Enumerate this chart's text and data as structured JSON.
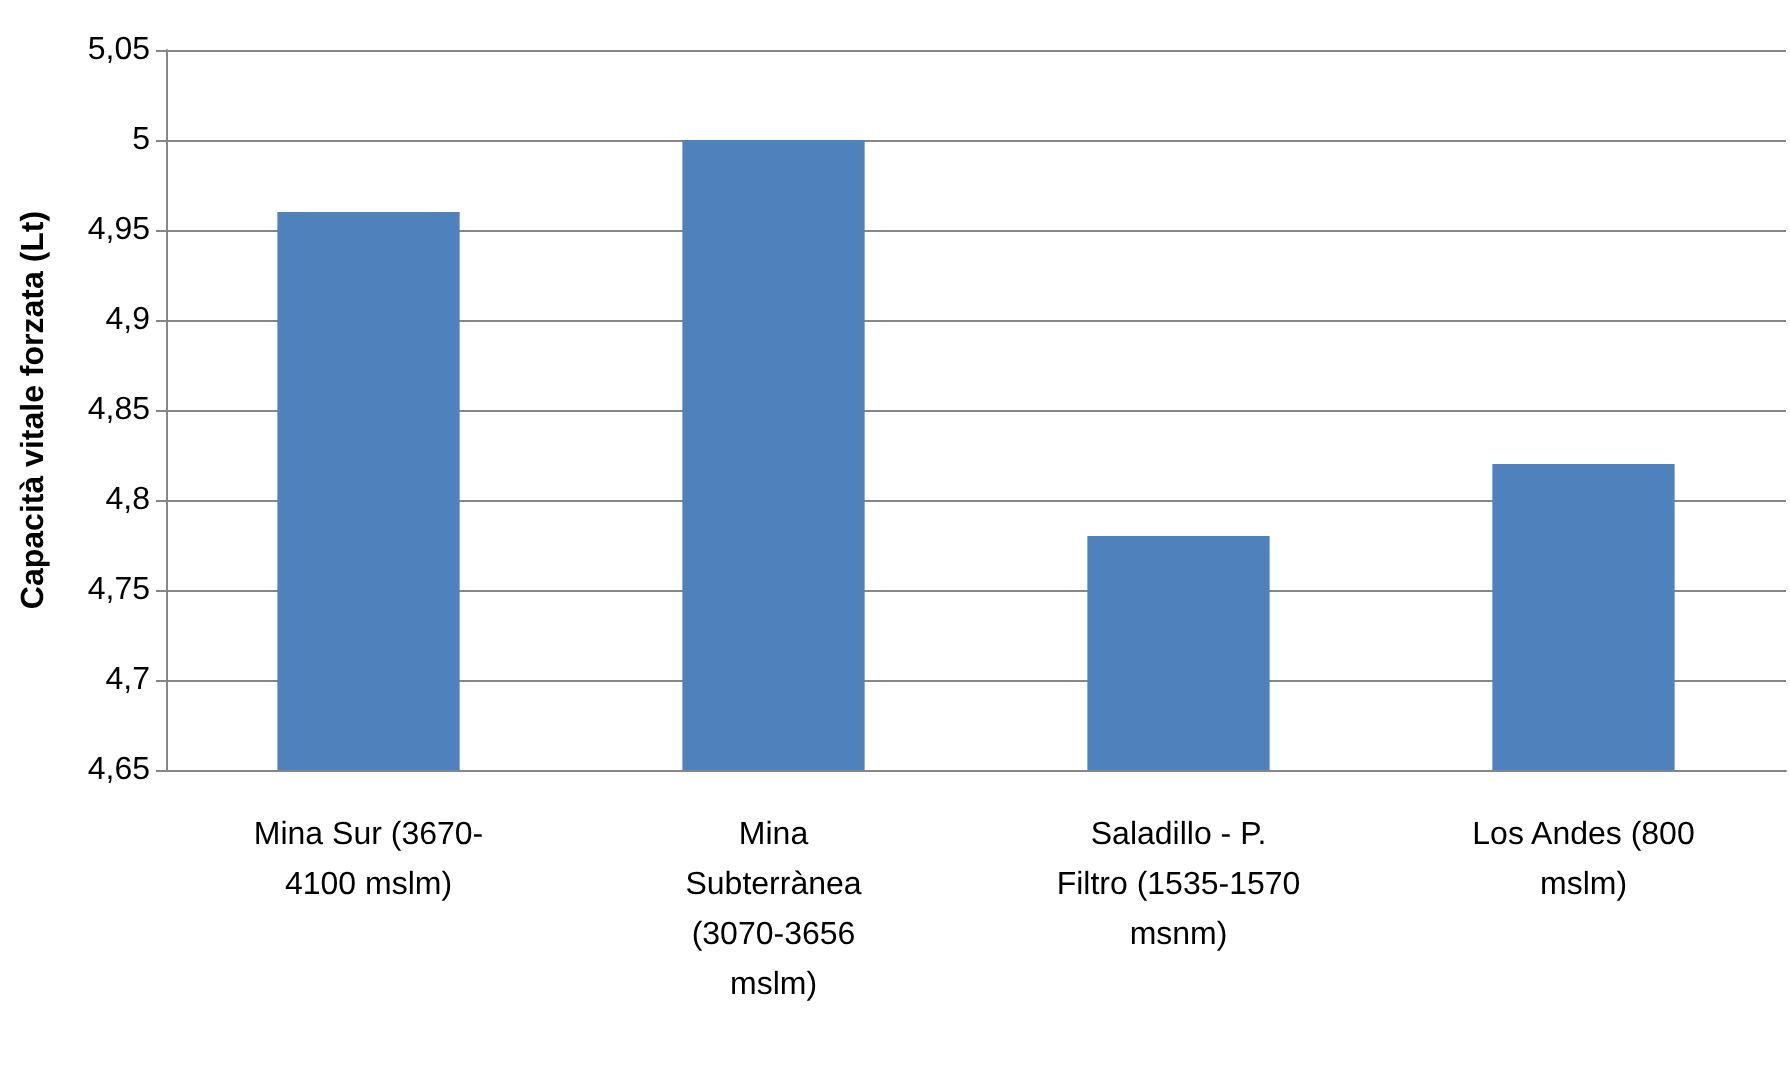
{
  "chart_data": {
    "type": "bar",
    "ylabel": "Capacità vitale forzata (Lt)",
    "categories": [
      "Mina Sur (3670-\n4100 mslm)",
      "Mina\nSubterrànea\n(3070-3656\nmslm)",
      "Saladillo - P.\nFiltro (1535-1570\nmsnm)",
      "Los Andes (800\nmslm)"
    ],
    "values": [
      4.96,
      5.0,
      4.78,
      4.82
    ],
    "color": "#4f81bd",
    "ylim": [
      4.65,
      5.05
    ],
    "yticks": [
      {
        "value": 4.65,
        "label": "4,65"
      },
      {
        "value": 4.7,
        "label": "4,7"
      },
      {
        "value": 4.75,
        "label": "4,75"
      },
      {
        "value": 4.8,
        "label": "4,8"
      },
      {
        "value": 4.85,
        "label": "4,85"
      },
      {
        "value": 4.9,
        "label": "4,9"
      },
      {
        "value": 4.95,
        "label": "4,95"
      },
      {
        "value": 5.0,
        "label": "5"
      },
      {
        "value": 5.05,
        "label": "5,05"
      }
    ],
    "grid": "y"
  }
}
